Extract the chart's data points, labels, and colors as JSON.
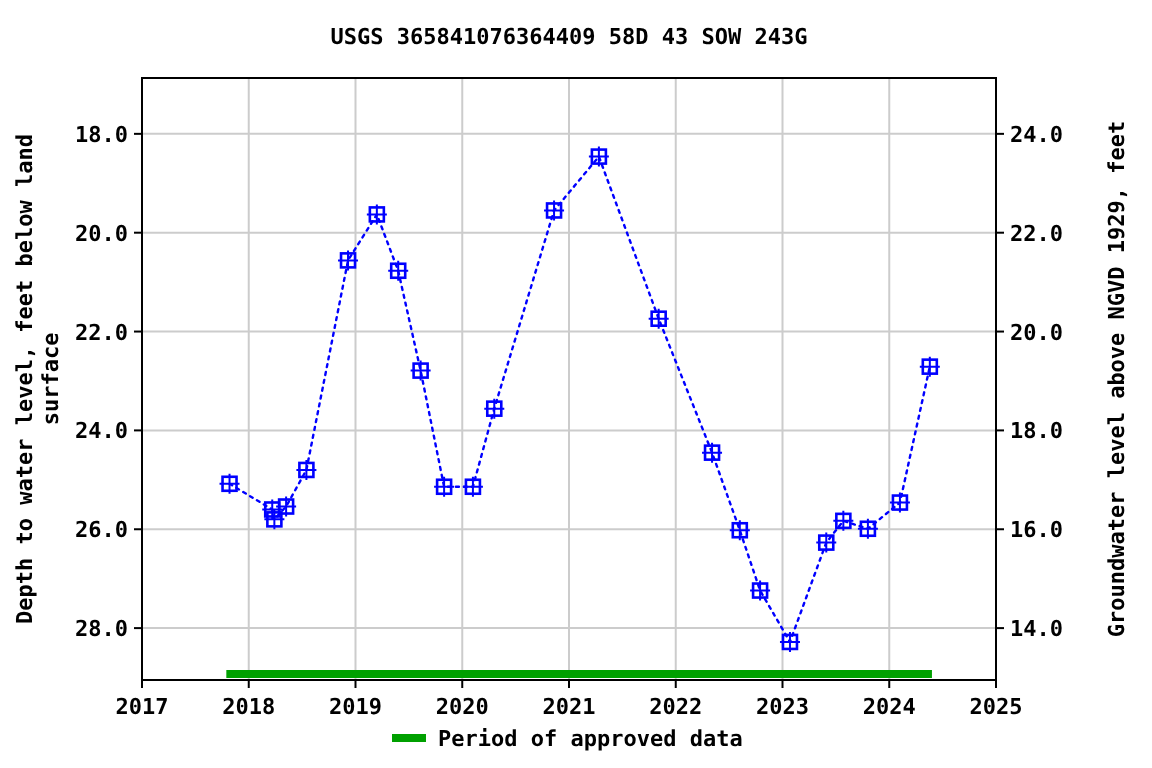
{
  "chart_data": {
    "type": "line",
    "title": "USGS 365841076364409 58D 43 SOW 243G",
    "ylabel": "Depth to water level, feet below land surface",
    "y2label": "Groundwater level above NGVD 1929, feet",
    "xlim": [
      2017,
      2025
    ],
    "xticks": [
      2017,
      2018,
      2019,
      2020,
      2021,
      2022,
      2023,
      2024,
      2025
    ],
    "ylim": [
      29.05,
      16.87
    ],
    "yticks": [
      {
        "value": 18,
        "label": "18.0"
      },
      {
        "value": 20,
        "label": "20.0"
      },
      {
        "value": 22,
        "label": "22.0"
      },
      {
        "value": 24,
        "label": "24.0"
      },
      {
        "value": 26,
        "label": "26.0"
      },
      {
        "value": 28,
        "label": "28.0"
      }
    ],
    "y2lim": [
      12.95,
      25.13
    ],
    "y2ticks": [
      {
        "value": 14,
        "label": "14.0"
      },
      {
        "value": 16,
        "label": "16.0"
      },
      {
        "value": 18,
        "label": "18.0"
      },
      {
        "value": 20,
        "label": "20.0"
      },
      {
        "value": 22,
        "label": "22.0"
      },
      {
        "value": 24,
        "label": "24.0"
      }
    ],
    "grid": true,
    "legend": "bottom",
    "series": [
      {
        "marker": "square",
        "line_style": "dotted",
        "color": "#0000ff",
        "x": [
          2017.82,
          2018.22,
          2018.24,
          2018.35,
          2018.54,
          2018.93,
          2019.2,
          2019.4,
          2019.61,
          2019.83,
          2020.1,
          2020.3,
          2020.86,
          2021.28,
          2021.84,
          2022.34,
          2022.6,
          2022.79,
          2023.07,
          2023.41,
          2023.57,
          2023.8,
          2024.1,
          2024.38
        ],
        "values": [
          25.08,
          25.6,
          25.8,
          25.54,
          24.8,
          20.56,
          19.63,
          20.77,
          22.79,
          25.14,
          25.14,
          23.56,
          19.55,
          18.46,
          21.74,
          24.45,
          26.02,
          27.24,
          28.28,
          26.27,
          25.83,
          25.99,
          25.46,
          22.71
        ]
      },
      {
        "marker": "none",
        "line_style": "solid",
        "name": "Period of approved data",
        "color": "#00a000",
        "x": [
          2017.79,
          2024.4
        ],
        "values": [
          28.93,
          28.93
        ]
      }
    ]
  }
}
